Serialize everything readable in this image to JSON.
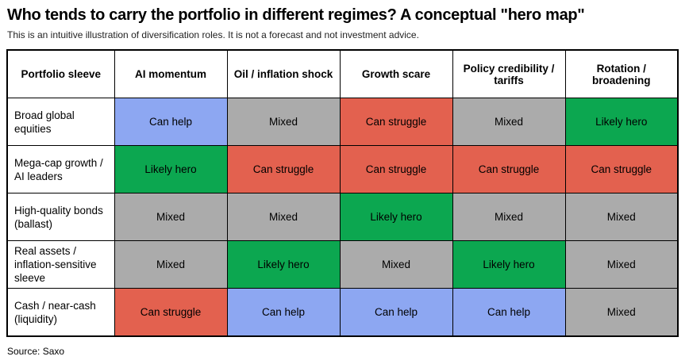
{
  "page": {
    "title": "Who tends to carry the portfolio in different regimes? A conceptual \"hero map\"",
    "subtitle": "This is an intuitive illustration of diversification roles. It is not a forecast and not investment advice.",
    "source": "Source: Saxo"
  },
  "chart_data": {
    "type": "heatmap",
    "title": "Who tends to carry the portfolio in different regimes? A conceptual \"hero map\"",
    "subtitle": "This is an intuitive illustration of diversification roles. It is not a forecast and not investment advice.",
    "columns": [
      "Portfolio sleeve",
      "AI momentum",
      "Oil / inflation shock",
      "Growth scare",
      "Policy credibility / tariffs",
      "Rotation / broadening"
    ],
    "rows": [
      {
        "sleeve": "Broad global equities",
        "cells": [
          {
            "label": "Can help",
            "category": "can_help"
          },
          {
            "label": "Mixed",
            "category": "mixed"
          },
          {
            "label": "Can struggle",
            "category": "can_struggle"
          },
          {
            "label": "Mixed",
            "category": "mixed"
          },
          {
            "label": "Likely hero",
            "category": "likely_hero"
          }
        ]
      },
      {
        "sleeve": "Mega-cap growth / AI leaders",
        "cells": [
          {
            "label": "Likely hero",
            "category": "likely_hero"
          },
          {
            "label": "Can struggle",
            "category": "can_struggle"
          },
          {
            "label": "Can struggle",
            "category": "can_struggle"
          },
          {
            "label": "Can struggle",
            "category": "can_struggle"
          },
          {
            "label": "Can struggle",
            "category": "can_struggle"
          }
        ]
      },
      {
        "sleeve": "High-quality bonds (ballast)",
        "cells": [
          {
            "label": "Mixed",
            "category": "mixed"
          },
          {
            "label": "Mixed",
            "category": "mixed"
          },
          {
            "label": "Likely hero",
            "category": "likely_hero"
          },
          {
            "label": "Mixed",
            "category": "mixed"
          },
          {
            "label": "Mixed",
            "category": "mixed"
          }
        ]
      },
      {
        "sleeve": "Real assets / inflation-sensitive sleeve",
        "cells": [
          {
            "label": "Mixed",
            "category": "mixed"
          },
          {
            "label": "Likely hero",
            "category": "likely_hero"
          },
          {
            "label": "Mixed",
            "category": "mixed"
          },
          {
            "label": "Likely hero",
            "category": "likely_hero"
          },
          {
            "label": "Mixed",
            "category": "mixed"
          }
        ]
      },
      {
        "sleeve": "Cash / near-cash (liquidity)",
        "cells": [
          {
            "label": "Can struggle",
            "category": "can_struggle"
          },
          {
            "label": "Can help",
            "category": "can_help"
          },
          {
            "label": "Can help",
            "category": "can_help"
          },
          {
            "label": "Can help",
            "category": "can_help"
          },
          {
            "label": "Mixed",
            "category": "mixed"
          }
        ]
      }
    ],
    "cell_colors": {
      "likely_hero": "#0CA750",
      "can_help": "#8DA7F2",
      "mixed": "#ABABAB",
      "can_struggle": "#E3614F"
    },
    "legend_position": "none",
    "grid": true
  }
}
